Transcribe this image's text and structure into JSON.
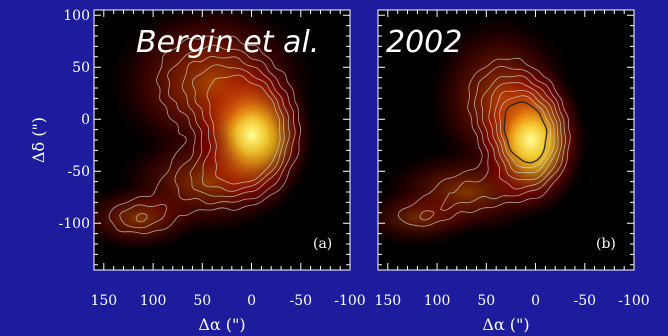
{
  "overlay_title": {
    "part1": "Bergin et al.",
    "part2": "2002"
  },
  "colors": {
    "slide_background": "#1c1c9c",
    "plot_background": "#000000",
    "text": "#ffffff",
    "contour_light": "#d8d8d8",
    "contour_dark": "#222222"
  },
  "chart_data": [
    {
      "type": "heatmap",
      "panel_label": "(a)",
      "xlabel": "Δα (\")",
      "ylabel": "Δδ (\")",
      "xlim": [
        160,
        -100
      ],
      "ylim": [
        -145,
        105
      ],
      "xticks": [
        150,
        100,
        50,
        0,
        -50,
        -100
      ],
      "xtick_labels": [
        "150",
        "100",
        "50",
        "0",
        "-50",
        "-100"
      ],
      "yticks": [
        100,
        50,
        0,
        -50,
        -100
      ],
      "ytick_labels": [
        "100",
        "50",
        "0",
        "-50",
        "-100"
      ],
      "peak": [
        0,
        -15
      ],
      "components": [
        {
          "x": 0,
          "y": -15,
          "sx": 28,
          "sy": 32,
          "amp": 1.0
        },
        {
          "x": 40,
          "y": 35,
          "sx": 45,
          "sy": 35,
          "amp": 0.55
        },
        {
          "x": 45,
          "y": -60,
          "sx": 40,
          "sy": 22,
          "amp": 0.45
        },
        {
          "x": 115,
          "y": -95,
          "sx": 28,
          "sy": 14,
          "amp": 0.42
        }
      ],
      "contour_levels": [
        0.25,
        0.35,
        0.45,
        0.55,
        0.65
      ]
    },
    {
      "type": "heatmap",
      "panel_label": "(b)",
      "xlabel": "Δα (\")",
      "ylabel": "",
      "xlim": [
        160,
        -100
      ],
      "ylim": [
        -145,
        105
      ],
      "xticks": [
        150,
        100,
        50,
        0,
        -50,
        -100
      ],
      "xtick_labels": [
        "150",
        "100",
        "50",
        "0",
        "-50",
        "-100"
      ],
      "yticks": [
        100,
        50,
        0,
        -50,
        -100
      ],
      "ytick_labels": [],
      "peak": [
        5,
        -20
      ],
      "components": [
        {
          "x": 5,
          "y": -20,
          "sx": 25,
          "sy": 32,
          "amp": 1.0
        },
        {
          "x": 35,
          "y": 20,
          "sx": 32,
          "sy": 35,
          "amp": 0.5
        },
        {
          "x": 70,
          "y": -70,
          "sx": 38,
          "sy": 18,
          "amp": 0.42
        },
        {
          "x": 120,
          "y": -95,
          "sx": 28,
          "sy": 12,
          "amp": 0.32
        }
      ],
      "contour_levels": [
        0.3,
        0.4,
        0.5,
        0.6,
        0.7,
        0.8,
        0.9
      ]
    }
  ]
}
